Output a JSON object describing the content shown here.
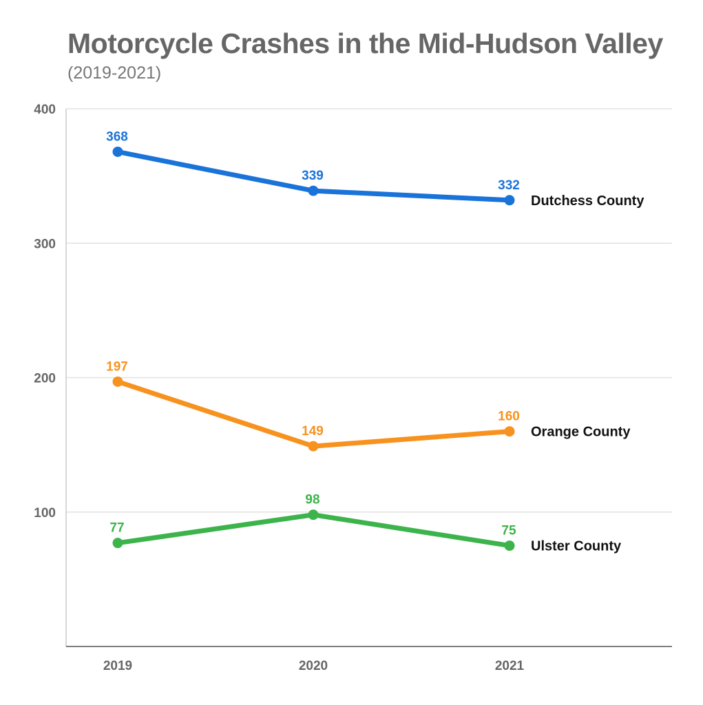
{
  "chart_data": {
    "type": "line",
    "title": "Motorcycle Crashes in the Mid-Hudson Valley",
    "subtitle": "(2019-2021)",
    "x": [
      "2019",
      "2020",
      "2021"
    ],
    "ylim": [
      0,
      400
    ],
    "yticks": [
      "100",
      "200",
      "300",
      "400"
    ],
    "grid": true,
    "legend": "inline-right",
    "series": [
      {
        "name": "Dutchess County",
        "color": "#1a73d9",
        "values": [
          368,
          339,
          332
        ],
        "labels": [
          "368",
          "339",
          "332"
        ]
      },
      {
        "name": "Orange County",
        "color": "#f7921e",
        "values": [
          197,
          149,
          160
        ],
        "labels": [
          "197",
          "149",
          "160"
        ]
      },
      {
        "name": "Ulster County",
        "color": "#3cb44b",
        "values": [
          77,
          98,
          75
        ],
        "labels": [
          "77",
          "98",
          "75"
        ]
      }
    ]
  }
}
